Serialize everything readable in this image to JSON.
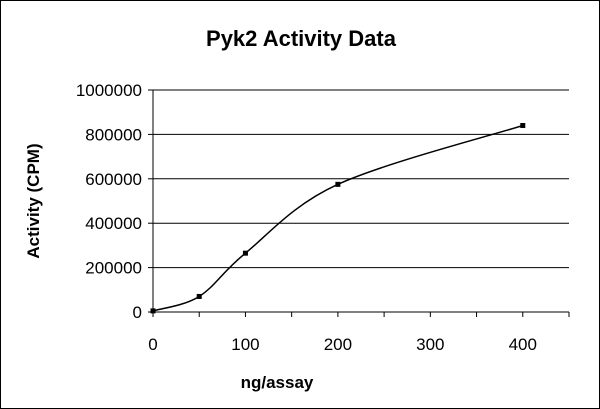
{
  "chart_data": {
    "type": "scatter",
    "title": "Pyk2 Activity Data",
    "xlabel": "ng/assay",
    "ylabel": "Activity (CPM)",
    "xlim": [
      0,
      450
    ],
    "ylim": [
      0,
      1000000
    ],
    "xticks": [
      "0",
      "100",
      "200",
      "300",
      "400"
    ],
    "yticks": [
      "0",
      "200000",
      "400000",
      "600000",
      "800000",
      "1000000"
    ],
    "grid": "horizontal",
    "legend": "none",
    "series": [
      {
        "x": [
          0,
          50,
          100,
          200,
          400
        ],
        "y": [
          5000,
          70000,
          265000,
          575000,
          840000
        ],
        "marker": "square",
        "line": "smooth"
      }
    ],
    "colors": {
      "line": "#000000",
      "grid": "#000000",
      "background": "#ffffff"
    }
  }
}
